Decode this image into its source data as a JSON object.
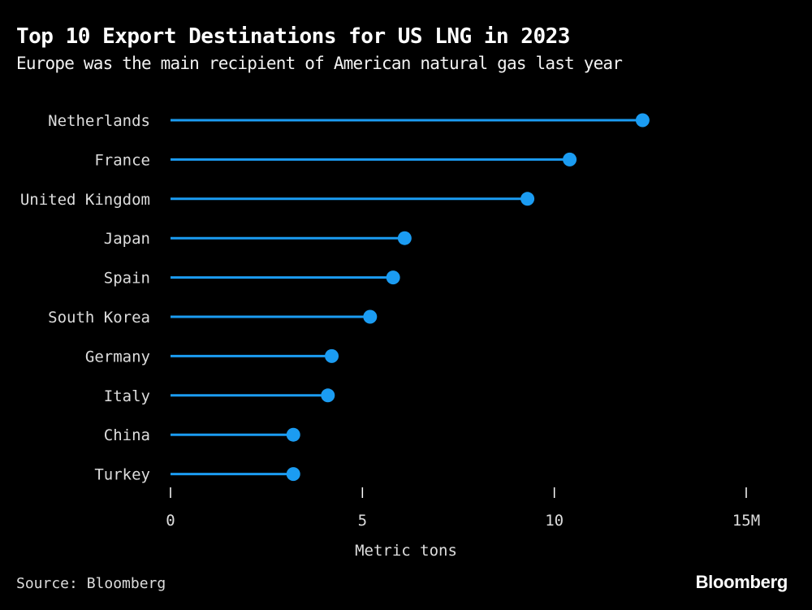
{
  "title": "Top 10 Export Destinations for US LNG in 2023",
  "subtitle": "Europe was the main recipient of American natural gas last year",
  "source": "Source: Bloomberg",
  "brand": "Bloomberg",
  "colors": {
    "background": "#000000",
    "series": "#1b9cf2",
    "text": "#ffffff",
    "axis": "#ffffff"
  },
  "chart_data": {
    "type": "lollipop",
    "categories": [
      "Netherlands",
      "France",
      "United Kingdom",
      "Japan",
      "Spain",
      "South Korea",
      "Germany",
      "Italy",
      "China",
      "Turkey"
    ],
    "values": [
      12.3,
      10.4,
      9.3,
      6.1,
      5.8,
      5.2,
      4.2,
      4.1,
      3.2,
      3.2
    ],
    "xlabel": "Metric tons",
    "xlim": [
      0,
      15
    ],
    "xticks": [
      0,
      5,
      10,
      15
    ],
    "xtick_labels": [
      "0",
      "5",
      "10",
      "15M"
    ],
    "grid": false,
    "legend": "none"
  }
}
